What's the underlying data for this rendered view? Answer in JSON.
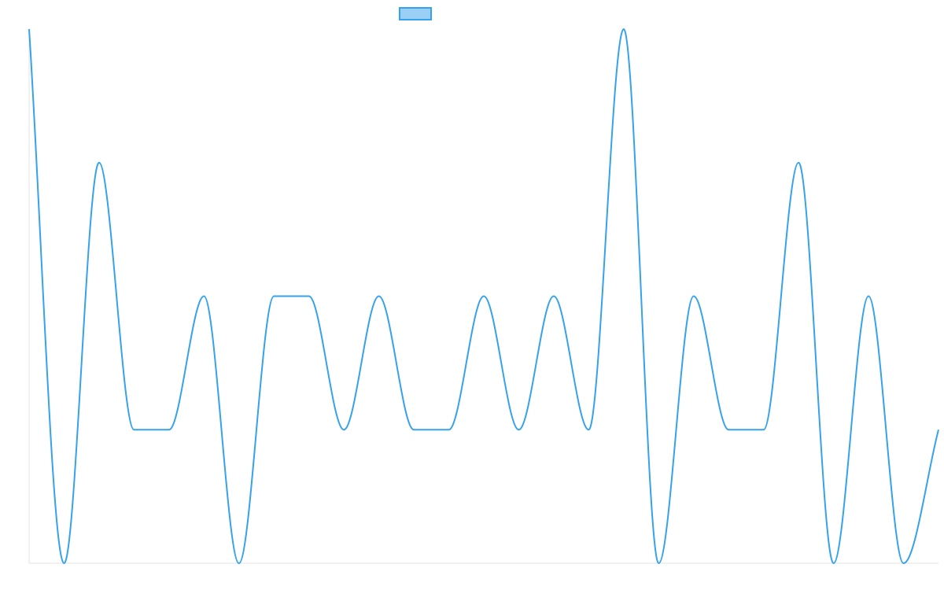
{
  "chart_data": {
    "type": "line",
    "x": [
      0,
      1,
      2,
      3,
      4,
      5,
      6,
      7,
      8,
      9,
      10,
      11,
      12,
      13,
      14,
      15,
      16,
      17,
      18,
      19,
      20,
      21,
      22,
      23,
      24,
      25,
      26
    ],
    "series": [
      {
        "values": [
          4,
          0,
          3,
          1,
          1,
          2,
          0,
          2,
          2,
          1,
          2,
          1,
          1,
          2,
          1,
          2,
          1,
          4,
          0,
          2,
          1,
          1,
          3,
          0,
          2,
          0,
          1
        ],
        "color": "#36A2EB",
        "fill": "#9AD0F5"
      }
    ],
    "ylim": [
      0,
      4
    ],
    "grid": false,
    "legend_position": "top",
    "curve": "smooth"
  }
}
